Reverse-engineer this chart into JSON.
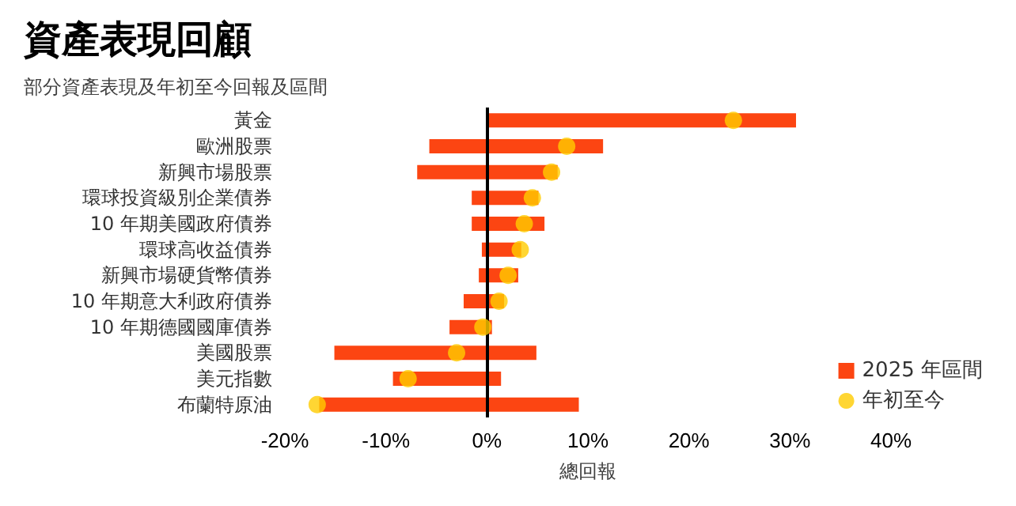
{
  "chart_data": {
    "type": "bar",
    "orientation": "horizontal",
    "title": "資產表現回顧",
    "subtitle": "部分資產表現及年初至今回報及區間",
    "xlabel": "總回報",
    "categories": [
      "黃金",
      "歐洲股票",
      "新興市場股票",
      "環球投資級別企業債券",
      "10 年期美國政府債券",
      "環球高收益債券",
      "新興市場硬貨幣債券",
      "10 年期意大利政府債券",
      "10 年期德國國庫債券",
      "美國股票",
      "美元指數",
      "布蘭特原油"
    ],
    "series": [
      {
        "name": "2025 年區間",
        "color": "#fc4512",
        "base": [
          0,
          -5.7,
          -6.9,
          -1.5,
          -1.5,
          -0.5,
          -0.8,
          -2.3,
          -3.7,
          -15.1,
          -9.3,
          -16.6
        ],
        "values": [
          30.6,
          17.2,
          13.9,
          6.6,
          7.2,
          3.9,
          3.9,
          4.0,
          4.2,
          20.0,
          10.7,
          25.7
        ]
      },
      {
        "name": "年初至今",
        "type": "scatter",
        "color": "#ffcc00",
        "x": [
          "黃金",
          "歐洲股票",
          "新興市場股票",
          "環球投資級別企業債券",
          "10 年期美國政府債券",
          "環球高收益債券",
          "新興市場硬貨幣債券",
          "10 年期意大利政府債券",
          "10 年期德國國庫債券",
          "美國股票",
          "美元指數",
          "布蘭特原油"
        ],
        "values": [
          24.4,
          7.9,
          6.4,
          4.5,
          3.7,
          3.3,
          2.1,
          1.2,
          -0.4,
          -3.0,
          -7.8,
          -16.8
        ]
      }
    ],
    "xlim": [
      -20,
      40
    ],
    "xticks": [
      {
        "value": -20,
        "label": "-20%"
      },
      {
        "value": -10,
        "label": "-10%"
      },
      {
        "value": 0,
        "label": "0%"
      },
      {
        "value": 10,
        "label": "10%"
      },
      {
        "value": 20,
        "label": "20%"
      },
      {
        "value": 30,
        "label": "30%"
      },
      {
        "value": 40,
        "label": "40%"
      }
    ],
    "ref_lines": [
      {
        "axis": "x",
        "value": 0,
        "color": "#000000"
      }
    ],
    "grid": false,
    "legend": "right",
    "marker": "circle"
  }
}
